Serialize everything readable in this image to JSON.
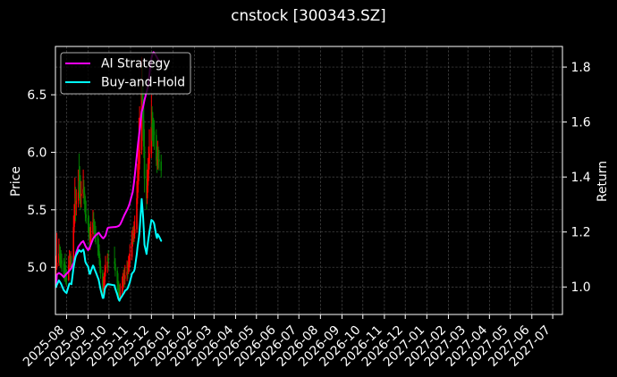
{
  "chart_data": {
    "type": "line",
    "overlay_type": "candlestick",
    "title": "cnstock [300343.SZ]",
    "xlabel": "",
    "ylabel_left": "Price",
    "ylabel_right": "Return",
    "background": "#000000",
    "grid": true,
    "xlim": [
      "2025-07-16",
      "2027-07-15"
    ],
    "ylim_left": [
      4.59,
      6.92
    ],
    "ylim_right": [
      0.9,
      1.875
    ],
    "x_ticks": [
      "2025-08",
      "2025-09",
      "2025-10",
      "2025-11",
      "2025-12",
      "2026-01",
      "2026-02",
      "2026-03",
      "2026-04",
      "2026-05",
      "2026-06",
      "2026-07",
      "2026-08",
      "2026-09",
      "2026-10",
      "2026-11",
      "2026-12",
      "2027-01",
      "2027-02",
      "2027-03",
      "2027-04",
      "2027-05",
      "2027-06",
      "2027-07"
    ],
    "y_ticks_left": [
      {
        "value": 5.0,
        "label": "5.0"
      },
      {
        "value": 5.5,
        "label": "5.5"
      },
      {
        "value": 6.0,
        "label": "6.0"
      },
      {
        "value": 6.5,
        "label": "6.5"
      }
    ],
    "y_ticks_right": [
      {
        "value": 1.0,
        "label": "1.0"
      },
      {
        "value": 1.2,
        "label": "1.2"
      },
      {
        "value": 1.4,
        "label": "1.4"
      },
      {
        "value": 1.6,
        "label": "1.6"
      },
      {
        "value": 1.8,
        "label": "1.8"
      }
    ],
    "legend": {
      "position": "upper left",
      "entries": [
        {
          "label": "AI Strategy",
          "color": "#ff00ff"
        },
        {
          "label": "Buy-and-Hold",
          "color": "#00ffff"
        }
      ]
    },
    "dates": [
      "2025-07-17",
      "2025-07-18",
      "2025-07-21",
      "2025-07-22",
      "2025-07-23",
      "2025-07-24",
      "2025-07-25",
      "2025-07-28",
      "2025-07-29",
      "2025-07-30",
      "2025-07-31",
      "2025-08-01",
      "2025-08-04",
      "2025-08-05",
      "2025-08-06",
      "2025-08-07",
      "2025-08-08",
      "2025-08-11",
      "2025-08-12",
      "2025-08-13",
      "2025-08-14",
      "2025-08-15",
      "2025-08-18",
      "2025-08-19",
      "2025-08-20",
      "2025-08-21",
      "2025-08-22",
      "2025-08-25",
      "2025-08-26",
      "2025-08-27",
      "2025-08-28",
      "2025-08-29",
      "2025-09-01",
      "2025-09-02",
      "2025-09-03",
      "2025-09-04",
      "2025-09-05",
      "2025-09-08",
      "2025-09-09",
      "2025-09-10",
      "2025-09-11",
      "2025-09-12",
      "2025-09-15",
      "2025-09-16",
      "2025-09-17",
      "2025-09-18",
      "2025-09-19",
      "2025-09-22",
      "2025-09-23",
      "2025-09-24",
      "2025-09-25",
      "2025-09-26",
      "2025-09-29",
      "2025-09-30",
      "2025-10-09",
      "2025-10-10",
      "2025-10-13",
      "2025-10-14",
      "2025-10-15",
      "2025-10-16",
      "2025-10-17",
      "2025-10-20",
      "2025-10-21",
      "2025-10-22",
      "2025-10-23",
      "2025-10-24",
      "2025-10-27",
      "2025-10-28",
      "2025-10-29",
      "2025-10-30",
      "2025-10-31",
      "2025-11-03",
      "2025-11-04",
      "2025-11-05",
      "2025-11-06",
      "2025-11-07",
      "2025-11-10",
      "2025-11-11",
      "2025-11-12",
      "2025-11-13",
      "2025-11-14",
      "2025-11-17",
      "2025-11-18",
      "2025-11-19",
      "2025-11-20",
      "2025-11-21",
      "2025-11-24",
      "2025-11-25",
      "2025-11-26",
      "2025-11-27",
      "2025-11-28",
      "2025-12-01",
      "2025-12-02",
      "2025-12-03",
      "2025-12-04",
      "2025-12-05",
      "2025-12-08",
      "2025-12-09",
      "2025-12-10",
      "2025-12-11",
      "2025-12-12",
      "2025-12-15"
    ],
    "series": [
      {
        "name": "AI Strategy",
        "axis": "right",
        "color": "#ff00ff",
        "values": [
          1.0,
          1.045,
          1.051,
          1.049,
          1.048,
          1.046,
          1.044,
          1.036,
          1.039,
          1.042,
          1.046,
          1.048,
          1.056,
          1.059,
          1.062,
          1.066,
          1.07,
          1.087,
          1.096,
          1.105,
          1.115,
          1.126,
          1.147,
          1.15,
          1.154,
          1.157,
          1.161,
          1.167,
          1.161,
          1.156,
          1.15,
          1.145,
          1.134,
          1.138,
          1.142,
          1.148,
          1.155,
          1.175,
          1.179,
          1.182,
          1.185,
          1.188,
          1.195,
          1.197,
          1.195,
          1.191,
          1.187,
          1.178,
          1.177,
          1.18,
          1.184,
          1.187,
          1.214,
          1.216,
          1.218,
          1.218,
          1.22,
          1.221,
          1.222,
          1.225,
          1.227,
          1.243,
          1.25,
          1.255,
          1.261,
          1.266,
          1.281,
          1.286,
          1.292,
          1.299,
          1.307,
          1.335,
          1.344,
          1.362,
          1.381,
          1.403,
          1.478,
          1.503,
          1.526,
          1.547,
          1.569,
          1.638,
          1.646,
          1.655,
          1.667,
          1.68,
          1.709,
          1.718,
          1.728,
          1.749,
          1.772,
          1.833,
          1.841,
          1.85,
          1.854,
          1.852,
          1.84,
          1.835,
          1.83,
          1.825,
          1.823,
          1.818
        ]
      },
      {
        "name": "Buy-and-Hold",
        "axis": "right",
        "color": "#00ffff",
        "values": [
          1.0,
          1.008,
          1.024,
          1.02,
          1.016,
          1.012,
          1.006,
          0.988,
          0.986,
          0.982,
          0.98,
          0.978,
          1.004,
          1.012,
          1.012,
          1.012,
          1.01,
          1.07,
          1.084,
          1.098,
          1.11,
          1.116,
          1.13,
          1.134,
          1.132,
          1.13,
          1.128,
          1.136,
          1.128,
          1.11,
          1.092,
          1.086,
          1.074,
          1.062,
          1.048,
          1.048,
          1.058,
          1.078,
          1.074,
          1.066,
          1.06,
          1.054,
          1.034,
          1.028,
          1.016,
          1.002,
          0.99,
          0.96,
          0.96,
          0.974,
          0.992,
          1.0,
          1.01,
          1.01,
          1.006,
          0.994,
          0.972,
          0.962,
          0.954,
          0.95,
          0.956,
          0.968,
          0.972,
          0.976,
          0.98,
          0.986,
          0.992,
          0.996,
          1.004,
          1.01,
          1.018,
          1.048,
          1.052,
          1.054,
          1.058,
          1.066,
          1.12,
          1.144,
          1.162,
          1.18,
          1.204,
          1.32,
          1.29,
          1.256,
          1.21,
          1.154,
          1.12,
          1.142,
          1.162,
          1.18,
          1.198,
          1.244,
          1.242,
          1.24,
          1.236,
          1.23,
          1.186,
          1.178,
          1.192,
          1.188,
          1.184,
          1.168
        ]
      }
    ],
    "candlestick": {
      "axis": "left",
      "up_color": "#ff0000",
      "down_color": "#008000",
      "columns": [
        "open",
        "high",
        "low",
        "close"
      ],
      "ohlc": [
        [
          4.98,
          5.1,
          4.93,
          5.0
        ],
        [
          5.0,
          5.3,
          4.98,
          5.04
        ],
        [
          5.04,
          5.25,
          5.01,
          5.12
        ],
        [
          5.12,
          5.2,
          5.02,
          5.1
        ],
        [
          5.1,
          5.18,
          5.0,
          5.08
        ],
        [
          5.08,
          5.15,
          4.99,
          5.06
        ],
        [
          5.06,
          5.12,
          4.96,
          5.03
        ],
        [
          5.03,
          5.08,
          4.9,
          4.94
        ],
        [
          4.94,
          5.05,
          4.88,
          4.93
        ],
        [
          4.93,
          5.12,
          4.87,
          4.91
        ],
        [
          4.91,
          5.02,
          4.85,
          4.9
        ],
        [
          4.9,
          4.98,
          4.84,
          4.89
        ],
        [
          4.89,
          5.1,
          4.88,
          5.02
        ],
        [
          5.02,
          5.15,
          4.97,
          5.06
        ],
        [
          5.08,
          5.12,
          5.0,
          5.06
        ],
        [
          5.03,
          5.14,
          4.99,
          5.06
        ],
        [
          5.06,
          5.1,
          4.98,
          5.05
        ],
        [
          5.05,
          5.45,
          5.04,
          5.35
        ],
        [
          5.35,
          5.55,
          5.3,
          5.42
        ],
        [
          5.42,
          5.78,
          5.38,
          5.49
        ],
        [
          5.6,
          5.7,
          5.4,
          5.55
        ],
        [
          5.55,
          5.68,
          5.45,
          5.58
        ],
        [
          5.58,
          5.85,
          5.52,
          5.65
        ],
        [
          5.75,
          5.99,
          5.6,
          5.67
        ],
        [
          5.67,
          5.88,
          5.55,
          5.66
        ],
        [
          5.66,
          5.8,
          5.5,
          5.65
        ],
        [
          5.62,
          5.75,
          5.52,
          5.64
        ],
        [
          5.64,
          5.85,
          5.6,
          5.68
        ],
        [
          5.68,
          5.76,
          5.55,
          5.64
        ],
        [
          5.64,
          5.7,
          5.48,
          5.55
        ],
        [
          5.55,
          5.62,
          5.4,
          5.46
        ],
        [
          5.46,
          5.58,
          5.38,
          5.43
        ],
        [
          5.43,
          5.5,
          5.3,
          5.37
        ],
        [
          5.37,
          5.45,
          5.25,
          5.31
        ],
        [
          5.31,
          5.38,
          5.18,
          5.24
        ],
        [
          5.22,
          5.35,
          5.15,
          5.24
        ],
        [
          5.24,
          5.4,
          5.2,
          5.29
        ],
        [
          5.29,
          5.5,
          5.26,
          5.39
        ],
        [
          5.39,
          5.48,
          5.3,
          5.37
        ],
        [
          5.37,
          5.42,
          5.25,
          5.33
        ],
        [
          5.33,
          5.4,
          5.22,
          5.3
        ],
        [
          5.3,
          5.36,
          5.2,
          5.27
        ],
        [
          5.27,
          5.3,
          5.1,
          5.17
        ],
        [
          5.17,
          5.25,
          5.08,
          5.14
        ],
        [
          5.14,
          5.2,
          5.02,
          5.08
        ],
        [
          5.08,
          5.12,
          4.95,
          5.01
        ],
        [
          5.01,
          5.06,
          4.9,
          4.95
        ],
        [
          4.95,
          4.98,
          4.75,
          4.8
        ],
        [
          4.8,
          4.92,
          4.74,
          4.8
        ],
        [
          4.8,
          4.95,
          4.78,
          4.87
        ],
        [
          4.87,
          5.02,
          4.84,
          4.96
        ],
        [
          4.96,
          5.1,
          4.92,
          5.0
        ],
        [
          5.0,
          5.12,
          4.95,
          5.05
        ],
        [
          5.08,
          5.15,
          4.98,
          5.05
        ],
        [
          5.05,
          5.18,
          4.98,
          5.03
        ],
        [
          5.03,
          5.08,
          4.92,
          4.97
        ],
        [
          4.97,
          5.0,
          4.8,
          4.86
        ],
        [
          4.86,
          4.95,
          4.76,
          4.81
        ],
        [
          4.81,
          4.88,
          4.72,
          4.77
        ],
        [
          4.77,
          4.85,
          4.7,
          4.75
        ],
        [
          4.75,
          4.86,
          4.72,
          4.78
        ],
        [
          4.78,
          4.92,
          4.75,
          4.84
        ],
        [
          4.84,
          4.95,
          4.8,
          4.86
        ],
        [
          4.86,
          4.98,
          4.82,
          4.88
        ],
        [
          4.92,
          5.0,
          4.83,
          4.9
        ],
        [
          4.9,
          5.02,
          4.85,
          4.93
        ],
        [
          4.93,
          5.06,
          4.88,
          4.96
        ],
        [
          4.99,
          5.05,
          4.9,
          4.98
        ],
        [
          4.98,
          5.1,
          4.94,
          5.02
        ],
        [
          5.02,
          5.12,
          4.96,
          5.05
        ],
        [
          5.05,
          5.2,
          5.0,
          5.09
        ],
        [
          5.09,
          5.32,
          5.06,
          5.24
        ],
        [
          5.24,
          5.35,
          5.18,
          5.26
        ],
        [
          5.28,
          5.36,
          5.2,
          5.27
        ],
        [
          5.27,
          5.4,
          5.22,
          5.29
        ],
        [
          5.29,
          5.45,
          5.25,
          5.33
        ],
        [
          5.33,
          5.75,
          5.3,
          5.6
        ],
        [
          5.6,
          5.9,
          5.55,
          5.72
        ],
        [
          5.72,
          6.05,
          5.65,
          5.81
        ],
        [
          5.81,
          6.3,
          5.75,
          5.9
        ],
        [
          5.9,
          6.4,
          5.85,
          6.02
        ],
        [
          6.02,
          6.83,
          5.98,
          6.6
        ],
        [
          6.6,
          6.75,
          6.3,
          6.45
        ],
        [
          6.45,
          6.6,
          6.1,
          6.28
        ],
        [
          6.28,
          6.45,
          5.95,
          6.05
        ],
        [
          6.05,
          6.2,
          5.65,
          5.77
        ],
        [
          5.77,
          5.9,
          5.5,
          5.6
        ],
        [
          5.6,
          5.85,
          5.55,
          5.71
        ],
        [
          5.71,
          5.95,
          5.65,
          5.81
        ],
        [
          5.81,
          6.05,
          5.75,
          5.9
        ],
        [
          5.9,
          6.2,
          5.85,
          5.99
        ],
        [
          5.99,
          6.5,
          5.95,
          6.22
        ],
        [
          6.25,
          6.4,
          6.1,
          6.21
        ],
        [
          6.21,
          6.35,
          6.05,
          6.2
        ],
        [
          6.2,
          6.3,
          6.05,
          6.18
        ],
        [
          6.18,
          6.28,
          6.02,
          6.15
        ],
        [
          6.15,
          6.2,
          5.88,
          5.93
        ],
        [
          5.93,
          6.05,
          5.82,
          5.89
        ],
        [
          5.89,
          6.1,
          5.85,
          5.96
        ],
        [
          5.96,
          6.05,
          5.86,
          5.94
        ],
        [
          5.94,
          6.02,
          5.84,
          5.92
        ],
        [
          5.92,
          5.98,
          5.78,
          5.84
        ]
      ]
    }
  }
}
